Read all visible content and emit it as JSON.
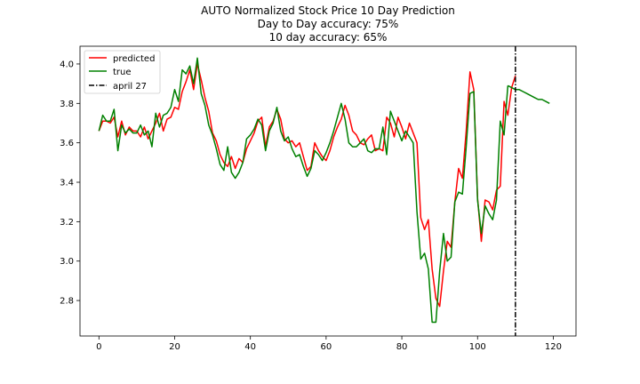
{
  "chart_data": {
    "type": "line",
    "title_lines": [
      "AUTO Normalized Stock Price 10 Day Prediction",
      "Day to Day accuracy: 75%",
      "10 day accuracy: 65%"
    ],
    "xlabel": "",
    "ylabel": "",
    "xlim": [
      -5,
      126
    ],
    "ylim": [
      2.62,
      4.09
    ],
    "x_ticks": [
      0,
      20,
      40,
      60,
      80,
      100,
      120
    ],
    "y_ticks": [
      2.8,
      3.0,
      3.2,
      3.4,
      3.6,
      3.8,
      4.0
    ],
    "grid": false,
    "legend_position": "upper-left",
    "colors": {
      "predicted": "#ff0000",
      "true": "#008000",
      "marker": "#000000"
    },
    "series": [
      {
        "name": "predicted",
        "color": "#ff0000",
        "x_start": 0,
        "values": [
          3.66,
          3.71,
          3.71,
          3.7,
          3.73,
          3.63,
          3.71,
          3.64,
          3.68,
          3.66,
          3.66,
          3.63,
          3.68,
          3.62,
          3.66,
          3.7,
          3.75,
          3.66,
          3.72,
          3.73,
          3.78,
          3.77,
          3.86,
          3.91,
          3.97,
          3.87,
          4.0,
          3.92,
          3.83,
          3.76,
          3.65,
          3.61,
          3.54,
          3.5,
          3.48,
          3.53,
          3.47,
          3.52,
          3.5,
          3.57,
          3.61,
          3.65,
          3.71,
          3.73,
          3.58,
          3.68,
          3.71,
          3.77,
          3.72,
          3.62,
          3.6,
          3.61,
          3.58,
          3.6,
          3.53,
          3.46,
          3.48,
          3.6,
          3.56,
          3.53,
          3.51,
          3.56,
          3.63,
          3.68,
          3.72,
          3.79,
          3.74,
          3.66,
          3.64,
          3.6,
          3.59,
          3.62,
          3.64,
          3.56,
          3.57,
          3.56,
          3.73,
          3.7,
          3.63,
          3.73,
          3.68,
          3.62,
          3.7,
          3.65,
          3.6,
          3.22,
          3.16,
          3.21,
          2.96,
          2.81,
          2.77,
          2.95,
          3.1,
          3.07,
          3.3,
          3.47,
          3.42,
          3.66,
          3.96,
          3.87,
          3.32,
          3.1,
          3.31,
          3.3,
          3.26,
          3.36,
          3.38,
          3.81,
          3.74,
          3.88,
          3.94
        ]
      },
      {
        "name": "true",
        "color": "#008000",
        "x_start": 0,
        "values": [
          3.66,
          3.74,
          3.71,
          3.71,
          3.77,
          3.56,
          3.69,
          3.65,
          3.67,
          3.65,
          3.65,
          3.69,
          3.64,
          3.66,
          3.58,
          3.75,
          3.68,
          3.74,
          3.75,
          3.78,
          3.87,
          3.81,
          3.97,
          3.95,
          3.99,
          3.9,
          4.03,
          3.85,
          3.79,
          3.69,
          3.64,
          3.57,
          3.49,
          3.46,
          3.58,
          3.45,
          3.42,
          3.45,
          3.5,
          3.62,
          3.64,
          3.67,
          3.72,
          3.69,
          3.56,
          3.66,
          3.7,
          3.78,
          3.66,
          3.61,
          3.63,
          3.57,
          3.53,
          3.54,
          3.48,
          3.43,
          3.47,
          3.56,
          3.54,
          3.51,
          3.55,
          3.6,
          3.66,
          3.73,
          3.8,
          3.72,
          3.6,
          3.58,
          3.58,
          3.6,
          3.62,
          3.56,
          3.55,
          3.57,
          3.57,
          3.68,
          3.54,
          3.76,
          3.71,
          3.66,
          3.61,
          3.66,
          3.63,
          3.6,
          3.25,
          3.01,
          3.04,
          2.96,
          2.69,
          2.69,
          2.95,
          3.14,
          3.0,
          3.02,
          3.3,
          3.35,
          3.34,
          3.58,
          3.85,
          3.86,
          3.31,
          3.14,
          3.28,
          3.24,
          3.21,
          3.31,
          3.71,
          3.64,
          3.89
        ]
      },
      {
        "name": "true",
        "color": "#008000",
        "x_start": 108,
        "values": [
          3.89,
          3.88,
          3.87,
          3.87,
          3.86,
          3.85,
          3.84,
          3.83,
          3.82,
          3.82,
          3.81,
          3.8
        ]
      }
    ],
    "vlines": [
      {
        "label": "april 27",
        "x": 110,
        "style": "dash-dot",
        "color": "#000000"
      }
    ],
    "legend_entries": [
      {
        "label": "predicted",
        "color": "#ff0000",
        "style": "solid"
      },
      {
        "label": "true",
        "color": "#008000",
        "style": "solid"
      },
      {
        "label": "april 27",
        "color": "#000000",
        "style": "dash-dot"
      }
    ]
  }
}
